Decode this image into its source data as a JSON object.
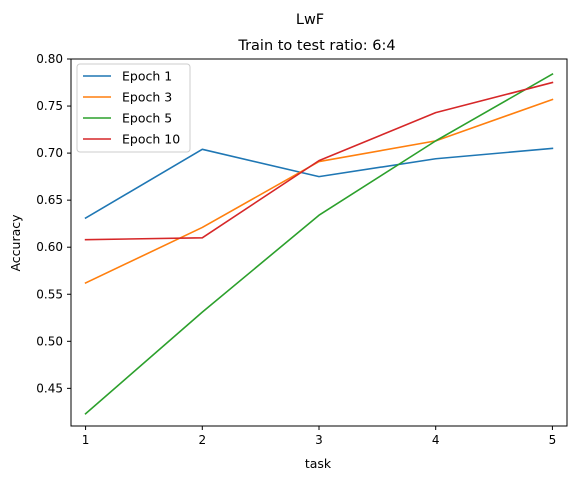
{
  "chart_data": {
    "type": "line",
    "suptitle": "LwF",
    "title": "Train to test ratio: 6:4",
    "xlabel": "task",
    "ylabel": "Accuracy",
    "x": [
      1,
      2,
      3,
      4,
      5
    ],
    "xticks": [
      "1",
      "2",
      "3",
      "4",
      "5"
    ],
    "yticks": [
      "0.45",
      "0.50",
      "0.55",
      "0.60",
      "0.65",
      "0.70",
      "0.75",
      "0.80"
    ],
    "ylim": [
      0.41,
      0.8
    ],
    "grid": false,
    "legend_position": "top-left",
    "series": [
      {
        "name": "Epoch 1",
        "color": "#1f77b4",
        "values": [
          0.631,
          0.704,
          0.675,
          0.694,
          0.705
        ]
      },
      {
        "name": "Epoch 3",
        "color": "#ff7f0e",
        "values": [
          0.562,
          0.621,
          0.691,
          0.713,
          0.757
        ]
      },
      {
        "name": "Epoch 5",
        "color": "#2ca02c",
        "values": [
          0.423,
          0.531,
          0.634,
          0.713,
          0.784
        ]
      },
      {
        "name": "Epoch 10",
        "color": "#d62728",
        "values": [
          0.608,
          0.61,
          0.692,
          0.743,
          0.775
        ]
      }
    ]
  }
}
